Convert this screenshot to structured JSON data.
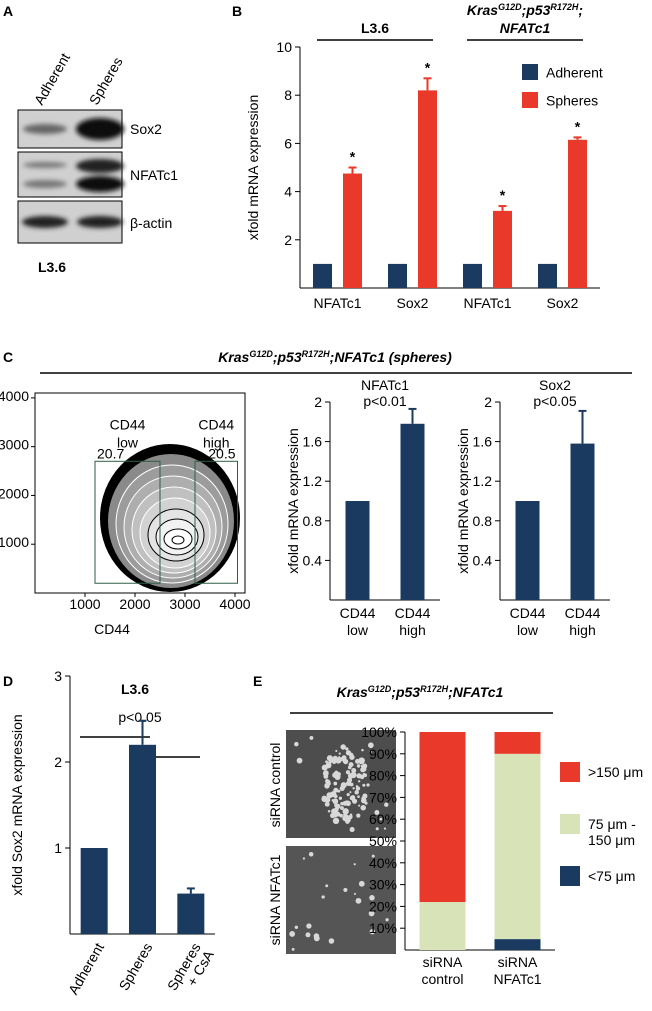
{
  "panel_labels": [
    "A",
    "B",
    "C",
    "D",
    "E"
  ],
  "blot": {
    "lanes": [
      "Adherent",
      "Spheres"
    ],
    "bands": [
      "Sox2",
      "NFATc1",
      "β-actin"
    ],
    "cell_line": "L3.6"
  },
  "panel_c_title": [
    [
      "Kras",
      "G12D",
      ";p53",
      "R172H",
      ";NFATc1 (spheres)"
    ]
  ],
  "panel_e": {
    "title": [
      [
        "Kras",
        "G12D",
        ";p53",
        "R172H",
        ";NFATc1"
      ]
    ],
    "images": [
      "siRNA control",
      "siRNA NFATc1"
    ]
  },
  "chart_data": [
    {
      "type": "bar",
      "ylabel": "xfold mRNA expression",
      "group_labels": [
        [
          [
            "L3.6"
          ]
        ],
        [
          [
            "Kras",
            "G12D",
            ";p53",
            "R172H",
            ";"
          ],
          [
            "NFATc1"
          ]
        ]
      ],
      "categories": [
        "NFATc1",
        "Sox2",
        "NFATc1",
        "Sox2"
      ],
      "series": [
        {
          "name": "Adherent",
          "color": "#1b3a60",
          "values": [
            1,
            1,
            1,
            1
          ]
        },
        {
          "name": "Spheres",
          "color": "#e8392a",
          "values": [
            4.75,
            8.2,
            3.2,
            6.15
          ],
          "errors": [
            0.25,
            0.5,
            0.2,
            0.1
          ],
          "annotations": [
            "*",
            "*",
            "*",
            "*"
          ]
        }
      ],
      "ylim": [
        0,
        10
      ],
      "yticks": [
        2,
        4,
        6,
        8,
        10
      ],
      "legend": "upper right"
    },
    {
      "type": "flow",
      "xlabel": "CD44",
      "xlim": [
        0,
        4200
      ],
      "ylim": [
        0,
        4100
      ],
      "xticks": [
        1000,
        2000,
        3000,
        4000
      ],
      "yticks": [
        1000,
        2000,
        3000,
        4000
      ],
      "gates": [
        {
          "label": [
            "CD44",
            "low"
          ],
          "value": 20.7,
          "xrange": [
            1200,
            2500
          ],
          "yrange": [
            200,
            2700
          ]
        },
        {
          "label": [
            "CD44",
            "high"
          ],
          "value": 20.5,
          "xrange": [
            3200,
            4050
          ],
          "yrange": [
            200,
            2700
          ]
        }
      ]
    },
    {
      "type": "bar",
      "title": [
        "NFATc1",
        "p<0.01"
      ],
      "ylabel": "xfold mRNA expression",
      "categories": [
        [
          "CD44",
          "low"
        ],
        [
          "CD44",
          "high"
        ]
      ],
      "values": [
        1,
        1.78
      ],
      "errors": [
        null,
        0.15
      ],
      "color": "#1b3a60",
      "ylim": [
        0,
        2
      ],
      "yticks": [
        0.4,
        0.8,
        1.2,
        1.6,
        2
      ]
    },
    {
      "type": "bar",
      "title": [
        "Sox2",
        "p<0.05"
      ],
      "ylabel": "xfold mRNA expression",
      "categories": [
        [
          "CD44",
          "low"
        ],
        [
          "CD44",
          "high"
        ]
      ],
      "values": [
        1,
        1.58
      ],
      "errors": [
        null,
        0.33
      ],
      "color": "#1b3a60",
      "ylim": [
        0,
        2
      ],
      "yticks": [
        0.4,
        0.8,
        1.2,
        1.6,
        2
      ]
    },
    {
      "type": "bar",
      "title": [
        "L3.6"
      ],
      "annotation": "p<0.05",
      "ylabel": "xfold Sox2 mRNA expression",
      "categories": [
        [
          "Adherent"
        ],
        [
          "Spheres"
        ],
        [
          "Spheres",
          "+ CsA"
        ]
      ],
      "values": [
        1,
        2.2,
        0.47
      ],
      "errors": [
        null,
        0.28,
        0.06
      ],
      "color": "#1b3a60",
      "ylim": [
        0,
        3
      ],
      "yticks": [
        1,
        2,
        3
      ]
    },
    {
      "type": "stacked_bar",
      "categories": [
        [
          "siRNA",
          "control"
        ],
        [
          "siRNA",
          "NFATc1"
        ]
      ],
      "series": [
        {
          "name": [
            "<75 μm"
          ],
          "color": "#1b3a60",
          "values": [
            0,
            5
          ]
        },
        {
          "name": [
            "75 μm -",
            "150 μm"
          ],
          "color": "#d8e4b8",
          "values": [
            22,
            85
          ]
        },
        {
          "name": [
            ">150 μm"
          ],
          "color": "#e8392a",
          "values": [
            78,
            10
          ]
        }
      ],
      "ylim": [
        0,
        100
      ],
      "yticks": [
        {
          "value": 10,
          "label": "10%"
        },
        {
          "value": 20,
          "label": "20%"
        },
        {
          "value": 30,
          "label": "30%"
        },
        {
          "value": 40,
          "label": "40%"
        },
        {
          "value": 50,
          "label": "50%"
        },
        {
          "value": 60,
          "label": "60%"
        },
        {
          "value": 70,
          "label": "70%"
        },
        {
          "value": 80,
          "label": "80%"
        },
        {
          "value": 90,
          "label": "90%"
        },
        {
          "value": 100,
          "label": "100%"
        }
      ],
      "legend": "right"
    }
  ]
}
